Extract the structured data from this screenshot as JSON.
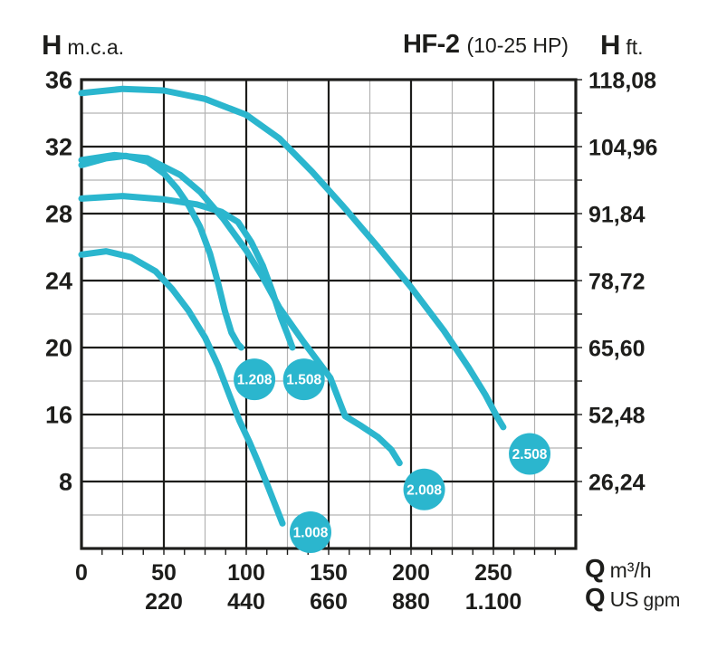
{
  "header": {
    "left_axis_symbol": "H",
    "left_axis_unit": "m.c.a.",
    "model": "HF-2",
    "power_range": "(10-25 HP)",
    "right_axis_symbol": "H",
    "right_axis_unit": "ft."
  },
  "footer": {
    "flow_symbol_metric": "Q",
    "flow_unit_metric": "m³/h",
    "flow_symbol_us": "Q",
    "flow_unit_us_main": "US",
    "flow_unit_us_small": "gpm"
  },
  "colors": {
    "curve": "#2bb6ce",
    "grid_major": "#1d1d1b",
    "grid_minor": "#b3b3b3",
    "text": "#1d1d1b",
    "background": "#ffffff",
    "bubble_text": "#ffffff"
  },
  "chart_data": {
    "type": "line",
    "title": "HF-2 (10-25 HP) pump performance curves",
    "xlabel": "Q (flow)",
    "ylabel_left": "H m.c.a.",
    "ylabel_right": "H ft.",
    "x_range_m3h": [
      0,
      300
    ],
    "x_major_step": 50,
    "x_minor_step": 25,
    "grid": true,
    "legend_position": "on-curve bubbles",
    "axis_note": "Left axis majors: 36,32,28,24,20,16 step 4 (m.c.a.), then 8, then unlabeled 0 at bottom border; scale below 16 is compressed (8 units per major). Right axis shows equivalent feet. Bottom rows: Q in m3/h and US gpm (gpm labels sit under the 50..250 m3/h ticks).",
    "y_ticks_left": [
      36,
      32,
      28,
      24,
      20,
      16,
      8
    ],
    "y_minor_values": [
      34,
      30,
      26,
      22,
      18,
      12,
      4
    ],
    "y_ticks_right_ft": [
      "118,08",
      "104,96",
      "91,84",
      "78,72",
      "65,60",
      "52,48",
      "26,24"
    ],
    "x_tick_labels_m3h": [
      "0",
      "50",
      "100",
      "150",
      "200",
      "250"
    ],
    "x_tick_values_m3h": [
      0,
      50,
      100,
      150,
      200,
      250
    ],
    "x_tick_labels_gpm": [
      "220",
      "440",
      "660",
      "880",
      "1.100"
    ],
    "x_tick_values_gpm_at_m3h": [
      50,
      100,
      150,
      200,
      250
    ],
    "series": [
      {
        "name": "1.008",
        "bubble_at": {
          "q": 139,
          "h": 1.95
        },
        "points": [
          [
            0,
            25.55
          ],
          [
            15,
            25.75
          ],
          [
            30,
            25.4
          ],
          [
            45,
            24.55
          ],
          [
            55,
            23.5
          ],
          [
            65,
            22.2
          ],
          [
            75,
            20.6
          ],
          [
            83,
            18.9
          ],
          [
            90,
            17.1
          ],
          [
            96,
            15.2
          ],
          [
            102,
            12.7
          ],
          [
            107,
            10.4
          ],
          [
            112,
            8.0
          ],
          [
            117,
            5.5
          ],
          [
            122,
            3.0
          ]
        ]
      },
      {
        "name": "1.208",
        "bubble_at": {
          "q": 105,
          "h": 18.1
        },
        "points": [
          [
            0,
            30.9
          ],
          [
            15,
            31.3
          ],
          [
            27,
            31.45
          ],
          [
            40,
            31.1
          ],
          [
            50,
            30.4
          ],
          [
            58,
            29.5
          ],
          [
            65,
            28.5
          ],
          [
            72,
            27.2
          ],
          [
            78,
            25.6
          ],
          [
            83,
            23.8
          ],
          [
            87,
            22.2
          ],
          [
            91,
            20.9
          ],
          [
            95,
            20.2
          ],
          [
            97,
            20.0
          ]
        ]
      },
      {
        "name": "1.508",
        "bubble_at": {
          "q": 135,
          "h": 18.1
        },
        "points": [
          [
            0,
            28.9
          ],
          [
            25,
            29.05
          ],
          [
            50,
            28.85
          ],
          [
            70,
            28.55
          ],
          [
            85,
            28.1
          ],
          [
            95,
            27.5
          ],
          [
            103,
            26.3
          ],
          [
            110,
            24.9
          ],
          [
            116,
            23.3
          ],
          [
            121,
            21.8
          ],
          [
            125,
            20.8
          ],
          [
            128,
            20.0
          ]
        ]
      },
      {
        "name": "2.008",
        "bubble_at": {
          "q": 208,
          "h": 7.05
        },
        "points": [
          [
            0,
            31.2
          ],
          [
            20,
            31.5
          ],
          [
            40,
            31.3
          ],
          [
            60,
            30.3
          ],
          [
            72,
            29.3
          ],
          [
            86,
            27.7
          ],
          [
            100,
            25.8
          ],
          [
            110,
            24.2
          ],
          [
            120,
            22.4
          ],
          [
            135,
            20.3
          ],
          [
            151,
            18.2
          ],
          [
            160,
            15.8
          ],
          [
            170,
            14.6
          ],
          [
            180,
            13.3
          ],
          [
            188,
            11.8
          ],
          [
            193,
            10.2
          ]
        ]
      },
      {
        "name": "2.508",
        "bubble_at": {
          "q": 272,
          "h": 11.3
        },
        "points": [
          [
            0,
            35.2
          ],
          [
            25,
            35.45
          ],
          [
            50,
            35.35
          ],
          [
            75,
            34.85
          ],
          [
            100,
            33.9
          ],
          [
            120,
            32.5
          ],
          [
            140,
            30.5
          ],
          [
            160,
            28.3
          ],
          [
            180,
            26.0
          ],
          [
            200,
            23.6
          ],
          [
            220,
            21.0
          ],
          [
            235,
            18.8
          ],
          [
            245,
            17.2
          ],
          [
            252,
            15.8
          ],
          [
            256,
            14.5
          ]
        ]
      }
    ]
  }
}
